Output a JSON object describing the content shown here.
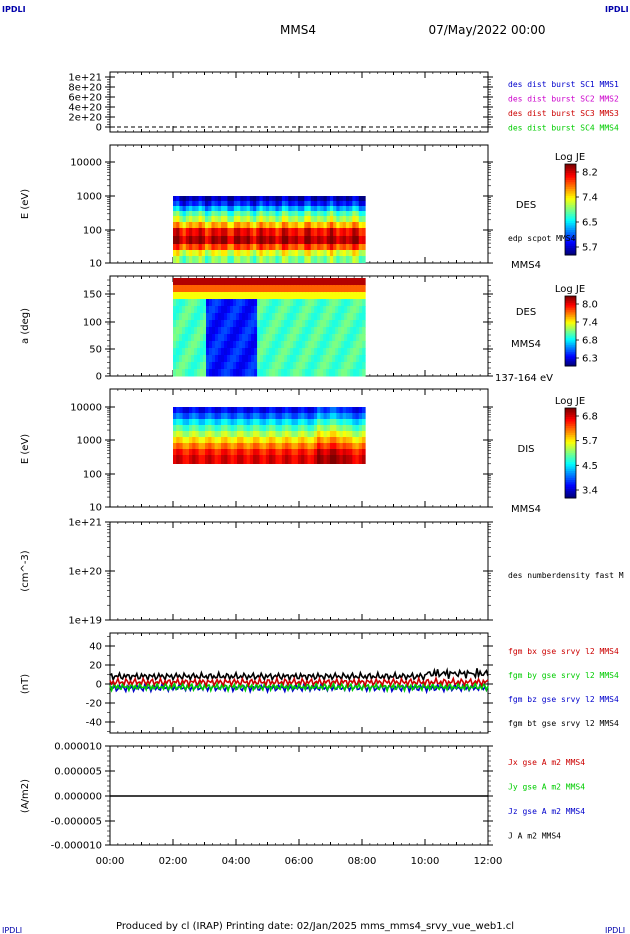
{
  "header": {
    "left_logo": "IPDLI",
    "right_logo": "IPDLI",
    "spacecraft": "MMS4",
    "date": "07/May/2022 00:00"
  },
  "footer": {
    "text": "Produced by cl (IRAP)   Printing date: 02/Jan/2025   mms_mms4_srvy_vue_web1.cl",
    "bl_logo": "IPDLI",
    "br_logo": "IPDLI"
  },
  "colors": {
    "red": "#cc0000",
    "magenta": "#cc00cc",
    "green": "#00cc00",
    "blue": "#0000cc",
    "black": "#000000"
  },
  "chart_data": [
    {
      "type": "line",
      "panel": "burst",
      "yticks": [
        "1e+21",
        "8e+20",
        "6e+20",
        "4e+20",
        "2e+20",
        "0"
      ],
      "ylim": [
        0,
        1e+21
      ],
      "legend": [
        {
          "text": "des dist burst SC1 MMS1",
          "color": "#0000cc"
        },
        {
          "text": "des dist burst SC2 MMS2",
          "color": "#cc00cc"
        },
        {
          "text": "des dist burst SC3 MMS3",
          "color": "#cc0000"
        },
        {
          "text": "des dist burst SC4 MMS4",
          "color": "#00cc00"
        }
      ]
    },
    {
      "type": "heatmap",
      "panel": "des-energy",
      "ylabel": "E (eV)",
      "yscale": "log",
      "yticks": [
        "10000",
        "1000",
        "100",
        "10"
      ],
      "ylim": [
        10,
        20000
      ],
      "colorbar": {
        "title": "Log JE",
        "ticks": [
          "8.2",
          "7.4",
          "6.5",
          "5.7"
        ]
      },
      "labels": [
        "DES",
        "edp scpot MMS4",
        "MMS4"
      ],
      "x_range_hours": [
        2.0,
        8.1
      ]
    },
    {
      "type": "heatmap",
      "panel": "des-pitch",
      "ylabel": "a (deg)",
      "yticks": [
        "150",
        "100",
        "50",
        "0"
      ],
      "ylim": [
        0,
        180
      ],
      "colorbar": {
        "title": "Log JE",
        "ticks": [
          "8.0",
          "7.4",
          "6.8",
          "6.3"
        ]
      },
      "labels": [
        "DES",
        "MMS4",
        "137-164 eV"
      ],
      "x_range_hours": [
        2.0,
        8.1
      ]
    },
    {
      "type": "heatmap",
      "panel": "dis-energy",
      "ylabel": "E (eV)",
      "yscale": "log",
      "yticks": [
        "10000",
        "1000",
        "100",
        "10"
      ],
      "ylim": [
        10,
        20000
      ],
      "colorbar": {
        "title": "Log JE",
        "ticks": [
          "6.8",
          "5.7",
          "4.5",
          "3.4"
        ]
      },
      "labels": [
        "DIS",
        "MMS4"
      ],
      "x_range_hours": [
        2.0,
        8.1
      ]
    },
    {
      "type": "line",
      "panel": "density",
      "ylabel": "(cm^-3)",
      "yscale": "log",
      "yticks": [
        "1e+21",
        "1e+20",
        "1e+19"
      ],
      "ylim": [
        1e+19,
        1e+21
      ],
      "legend": [
        {
          "text": "des numberdensity fast M",
          "color": "#000000"
        }
      ]
    },
    {
      "type": "line",
      "panel": "fgm",
      "ylabel": "(nT)",
      "yticks": [
        "40",
        "20",
        "0",
        "-20",
        "-40"
      ],
      "ylim": [
        -50,
        50
      ],
      "series": [
        {
          "name": "fgm bx gse srvy l2 MMS4",
          "color": "#cc0000",
          "level": 2
        },
        {
          "name": "fgm by gse srvy l2 MMS4",
          "color": "#00cc00",
          "level": -3
        },
        {
          "name": "fgm bz gse srvy l2 MMS4",
          "color": "#0000cc",
          "level": -4
        },
        {
          "name": "fgm bt gse srvy l2 MMS4",
          "color": "#000000",
          "level": 8
        }
      ]
    },
    {
      "type": "line",
      "panel": "current",
      "ylabel": "(A/m2)",
      "yticks": [
        "0.000010",
        "0.000005",
        "0.000000",
        "-0.000005",
        "-0.000010"
      ],
      "ylim": [
        -1e-05,
        1e-05
      ],
      "series": [
        {
          "name": "Jx gse A m2 MMS4",
          "color": "#cc0000"
        },
        {
          "name": "Jy gse A m2 MMS4",
          "color": "#00cc00"
        },
        {
          "name": "Jz gse A m2 MMS4",
          "color": "#0000cc"
        },
        {
          "name": "J A m2 MMS4",
          "color": "#000000"
        }
      ]
    }
  ],
  "xaxis": {
    "ticks": [
      "00:00",
      "02:00",
      "04:00",
      "06:00",
      "08:00",
      "10:00",
      "12:00"
    ],
    "range_hours": [
      0,
      12
    ]
  }
}
